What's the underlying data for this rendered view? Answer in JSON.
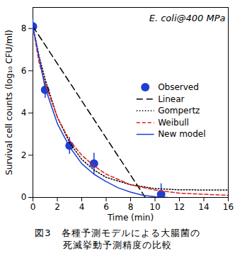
{
  "chart_data": {
    "type": "line",
    "annotation": "E. coli@400 MPa",
    "x_label": "Time (min)",
    "y_label": "Survival cell counts (log₁₀ CFU/ml)",
    "caption": [
      "図3　各種予測モデルによる大腸菌の",
      "死滅挙動予測精度の比較"
    ],
    "xlim": [
      0,
      16
    ],
    "ylim": [
      0,
      9
    ],
    "xticks": [
      0,
      2,
      4,
      6,
      8,
      10,
      12,
      14,
      16
    ],
    "yticks": [
      0,
      2,
      4,
      6,
      8
    ],
    "legend": "right",
    "series": [
      {
        "name": "Observed",
        "type": "scatter",
        "marker": "circle",
        "color": "#1f3fd0",
        "x": [
          0,
          1,
          3,
          5,
          10.5
        ],
        "values": [
          8.1,
          5.1,
          2.45,
          1.6,
          0.15
        ],
        "error": [
          0.35,
          0.4,
          0.4,
          0.5,
          0.5
        ]
      },
      {
        "name": "Linear",
        "type": "line",
        "line_style": "long-dashed",
        "color": "#000000",
        "x": [
          0,
          9.2
        ],
        "values": [
          8.1,
          0
        ]
      },
      {
        "name": "Gompertz",
        "type": "line",
        "line_style": "dotted",
        "color": "#000000",
        "x": [
          0,
          0.5,
          1,
          2,
          3,
          4,
          5,
          6,
          8,
          10,
          12,
          16
        ],
        "values": [
          8.1,
          6.7,
          5.6,
          3.8,
          2.6,
          1.8,
          1.3,
          0.95,
          0.6,
          0.42,
          0.36,
          0.35
        ]
      },
      {
        "name": "Weibull",
        "type": "line",
        "line_style": "dashed",
        "color": "#e0201b",
        "x": [
          0,
          0.5,
          1,
          2,
          3,
          4,
          5,
          6,
          8,
          10,
          12,
          16
        ],
        "values": [
          8.1,
          6.4,
          5.4,
          3.8,
          2.7,
          2.0,
          1.5,
          1.1,
          0.6,
          0.35,
          0.2,
          0.1
        ]
      },
      {
        "name": "New model",
        "type": "line",
        "line_style": "solid",
        "color": "#1f3fd0",
        "x": [
          0,
          1,
          2,
          3,
          4,
          5,
          6,
          7,
          8,
          9,
          10,
          11
        ],
        "values": [
          8.1,
          5.2,
          3.5,
          2.4,
          1.6,
          1.1,
          0.75,
          0.45,
          0.25,
          0.1,
          0.03,
          0
        ]
      }
    ]
  }
}
